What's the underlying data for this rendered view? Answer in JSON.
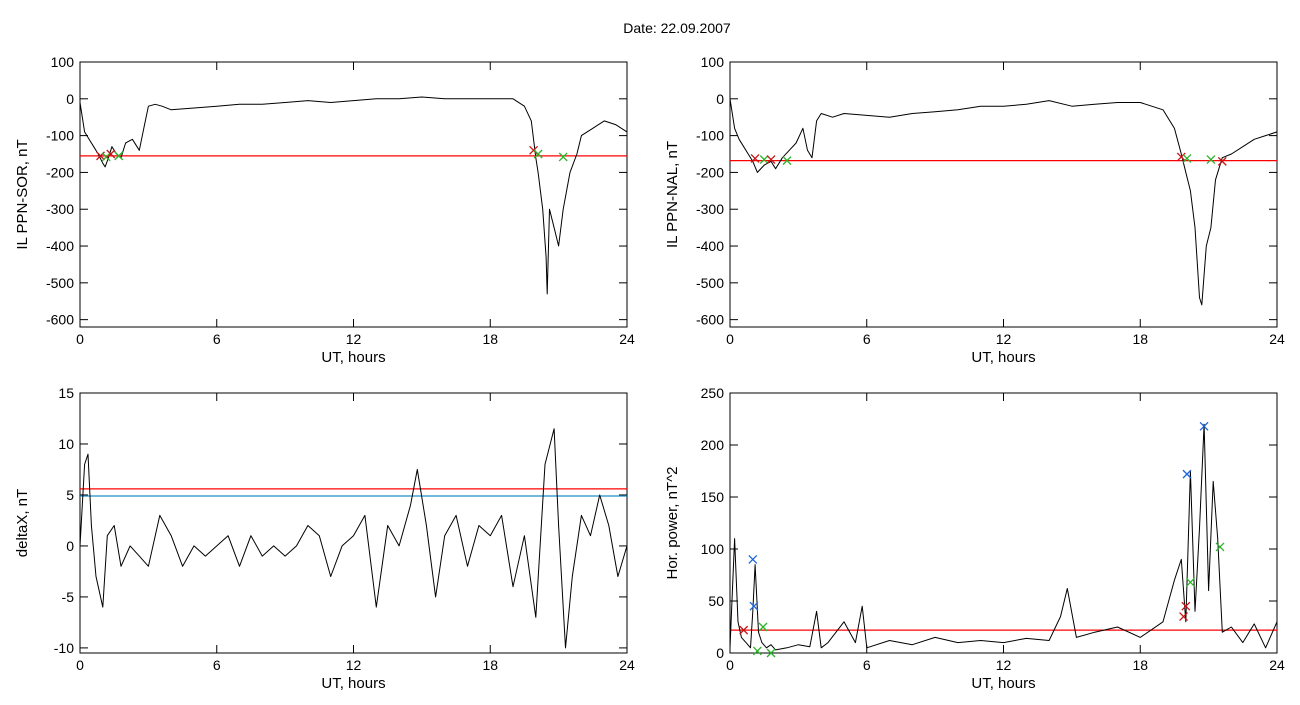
{
  "figure": {
    "title": "Date:  22.09.2007",
    "colors": {
      "trace": "#000000",
      "threshold": "#ff0000",
      "secondary_threshold": "#1e90c8",
      "marker_blue": "#1e64dc",
      "marker_green": "#28b428",
      "marker_red": "#c81414",
      "segment": "#1e64dc"
    }
  },
  "chart_data": [
    {
      "id": "il-ppn-sor",
      "type": "line",
      "xlabel": "UT, hours",
      "ylabel": "IL PPN-SOR, nT",
      "xlim": [
        0,
        24
      ],
      "ylim": [
        -620,
        100
      ],
      "xticks": [
        0,
        6,
        12,
        18,
        24
      ],
      "yticks": [
        100,
        0,
        -100,
        -200,
        -300,
        -400,
        -500,
        -600
      ],
      "grid": false,
      "series": [
        {
          "values_x": [
            0,
            0.2,
            0.4,
            0.6,
            0.8,
            1.0,
            1.1,
            1.25,
            1.4,
            1.6,
            1.8,
            2.0,
            2.3,
            2.6,
            2.8,
            3.0,
            3.3,
            3.6,
            4,
            5,
            6,
            7,
            8,
            9,
            10,
            11,
            12,
            13,
            14,
            15,
            16,
            17,
            18,
            19,
            19.5,
            19.8,
            20.0,
            20.1,
            20.2,
            20.3,
            20.45,
            20.5,
            20.6,
            20.8,
            21.0,
            21.2,
            21.5,
            21.8,
            22,
            22.5,
            23,
            23.5,
            24
          ],
          "values_y": [
            -10,
            -90,
            -110,
            -130,
            -150,
            -175,
            -185,
            -160,
            -130,
            -150,
            -160,
            -120,
            -110,
            -140,
            -80,
            -20,
            -15,
            -20,
            -30,
            -25,
            -20,
            -15,
            -15,
            -10,
            -5,
            -10,
            -5,
            0,
            0,
            5,
            0,
            0,
            0,
            0,
            -20,
            -60,
            -160,
            -200,
            -250,
            -300,
            -430,
            -530,
            -300,
            -350,
            -400,
            -300,
            -200,
            -150,
            -100,
            -80,
            -60,
            -70,
            -90
          ]
        }
      ],
      "thresholds": [
        {
          "y": -155,
          "color": "#ff0000"
        }
      ],
      "markers": [
        {
          "x": 0.9,
          "y": -155,
          "color": "#c81414"
        },
        {
          "x": 1.15,
          "y": -158,
          "color": "#28b428"
        },
        {
          "x": 1.35,
          "y": -150,
          "color": "#c81414"
        },
        {
          "x": 1.7,
          "y": -155,
          "color": "#28b428"
        },
        {
          "x": 19.9,
          "y": -140,
          "color": "#c81414"
        },
        {
          "x": 20.1,
          "y": -150,
          "color": "#28b428"
        },
        {
          "x": 21.2,
          "y": -158,
          "color": "#28b428"
        }
      ]
    },
    {
      "id": "il-ppn-nal",
      "type": "line",
      "xlabel": "UT, hours",
      "ylabel": "IL PPN-NAL, nT",
      "xlim": [
        0,
        24
      ],
      "ylim": [
        -620,
        100
      ],
      "xticks": [
        0,
        6,
        12,
        18,
        24
      ],
      "yticks": [
        100,
        0,
        -100,
        -200,
        -300,
        -400,
        -500,
        -600
      ],
      "grid": false,
      "series": [
        {
          "values_x": [
            0,
            0.2,
            0.4,
            0.6,
            0.8,
            1.0,
            1.2,
            1.5,
            1.8,
            2.0,
            2.3,
            2.6,
            2.9,
            3.2,
            3.4,
            3.6,
            3.8,
            4.0,
            4.5,
            5,
            6,
            7,
            8,
            9,
            10,
            11,
            12,
            13,
            14,
            15,
            16,
            17,
            18,
            19,
            19.5,
            19.8,
            20.0,
            20.2,
            20.4,
            20.6,
            20.7,
            20.9,
            21.1,
            21.3,
            21.6,
            22,
            22.5,
            23,
            23.5,
            24
          ],
          "values_y": [
            0,
            -80,
            -110,
            -130,
            -150,
            -170,
            -200,
            -180,
            -170,
            -190,
            -160,
            -140,
            -120,
            -80,
            -140,
            -160,
            -60,
            -40,
            -50,
            -40,
            -45,
            -50,
            -40,
            -35,
            -30,
            -20,
            -20,
            -15,
            -5,
            -20,
            -15,
            -10,
            -10,
            -30,
            -80,
            -150,
            -200,
            -250,
            -350,
            -540,
            -560,
            -400,
            -350,
            -220,
            -160,
            -150,
            -130,
            -110,
            -100,
            -90
          ]
        }
      ],
      "thresholds": [
        {
          "y": -168,
          "color": "#ff0000"
        }
      ],
      "markers": [
        {
          "x": 1.1,
          "y": -162,
          "color": "#c81414"
        },
        {
          "x": 1.5,
          "y": -165,
          "color": "#28b428"
        },
        {
          "x": 1.8,
          "y": -165,
          "color": "#c81414"
        },
        {
          "x": 2.5,
          "y": -168,
          "color": "#28b428"
        },
        {
          "x": 19.8,
          "y": -158,
          "color": "#c81414"
        },
        {
          "x": 20.05,
          "y": -162,
          "color": "#28b428"
        },
        {
          "x": 21.1,
          "y": -165,
          "color": "#28b428"
        },
        {
          "x": 21.6,
          "y": -170,
          "color": "#c81414"
        }
      ]
    },
    {
      "id": "deltax",
      "type": "line",
      "xlabel": "UT, hours",
      "ylabel": "deltaX, nT",
      "xlim": [
        0,
        24
      ],
      "ylim": [
        -10.5,
        15
      ],
      "xticks": [
        0,
        6,
        12,
        18,
        24
      ],
      "yticks": [
        15,
        10,
        5,
        0,
        -5,
        -10
      ],
      "grid": false,
      "series": [
        {
          "values_x": [
            0,
            0.2,
            0.35,
            0.5,
            0.7,
            1.0,
            1.2,
            1.5,
            1.8,
            2.2,
            2.6,
            3.0,
            3.5,
            4.0,
            4.5,
            5,
            5.5,
            6,
            6.5,
            7,
            7.5,
            8,
            8.5,
            9,
            9.5,
            10,
            10.5,
            11,
            11.5,
            12,
            12.5,
            13,
            13.5,
            14,
            14.5,
            14.8,
            15.2,
            15.6,
            16,
            16.5,
            17,
            17.5,
            18,
            18.5,
            19,
            19.5,
            20,
            20.4,
            20.8,
            21.0,
            21.3,
            21.6,
            22,
            22.4,
            22.8,
            23.2,
            23.6,
            24
          ],
          "values_y": [
            0,
            8,
            9,
            2,
            -3,
            -6,
            1,
            2,
            -2,
            0,
            -1,
            -2,
            3,
            1,
            -2,
            0,
            -1,
            0,
            1,
            -2,
            1,
            -1,
            0,
            -1,
            0,
            2,
            1,
            -3,
            0,
            1,
            3,
            -6,
            2,
            0,
            4,
            7.5,
            2,
            -5,
            1,
            3,
            -2,
            2,
            1,
            3,
            -4,
            1,
            -7,
            8,
            11.5,
            2,
            -10,
            -3,
            3,
            1,
            5,
            2,
            -3,
            0
          ]
        }
      ],
      "thresholds": [
        {
          "y": 5.6,
          "color": "#ff0000"
        },
        {
          "y": 4.9,
          "color": "#1e90c8"
        }
      ],
      "markers": []
    },
    {
      "id": "hor-power",
      "type": "line",
      "xlabel": "UT, hours",
      "ylabel": "Hor. power, nT^2",
      "xlim": [
        0,
        24
      ],
      "ylim": [
        0,
        250
      ],
      "xticks": [
        0,
        6,
        12,
        18,
        24
      ],
      "yticks": [
        0,
        50,
        100,
        150,
        200,
        250
      ],
      "grid": false,
      "series": [
        {
          "values_x": [
            0,
            0.2,
            0.35,
            0.5,
            0.7,
            0.9,
            1.0,
            1.1,
            1.25,
            1.4,
            1.6,
            1.8,
            2.0,
            2.5,
            3.0,
            3.5,
            3.8,
            4.0,
            4.3,
            5,
            5.5,
            5.8,
            6,
            7,
            8,
            9,
            10,
            11,
            12,
            13,
            14,
            14.5,
            14.8,
            15.2,
            16,
            17,
            18,
            19,
            19.5,
            19.8,
            20.0,
            20.2,
            20.4,
            20.6,
            20.8,
            21.0,
            21.2,
            21.4,
            21.6,
            22,
            22.5,
            23,
            23.5,
            24
          ],
          "values_y": [
            5,
            110,
            30,
            15,
            10,
            5,
            40,
            85,
            20,
            10,
            5,
            8,
            3,
            5,
            8,
            6,
            40,
            5,
            10,
            30,
            10,
            45,
            5,
            12,
            8,
            15,
            10,
            12,
            10,
            14,
            12,
            35,
            62,
            15,
            20,
            25,
            15,
            30,
            70,
            90,
            30,
            175,
            40,
            120,
            220,
            60,
            165,
            110,
            20,
            25,
            10,
            28,
            5,
            30
          ]
        }
      ],
      "thresholds": [
        {
          "y": 22,
          "color": "#ff0000"
        }
      ],
      "markers": [
        {
          "x": 1.0,
          "y": 90,
          "color": "#1e64dc"
        },
        {
          "x": 1.05,
          "y": 45,
          "color": "#1e64dc"
        },
        {
          "x": 0.6,
          "y": 22,
          "color": "#c81414"
        },
        {
          "x": 1.45,
          "y": 25,
          "color": "#28b428"
        },
        {
          "x": 1.2,
          "y": 2,
          "color": "#28b428"
        },
        {
          "x": 1.8,
          "y": 0,
          "color": "#28b428"
        },
        {
          "x": 19.9,
          "y": 35,
          "color": "#c81414"
        },
        {
          "x": 20.0,
          "y": 45,
          "color": "#c81414"
        },
        {
          "x": 20.05,
          "y": 172,
          "color": "#1e64dc"
        },
        {
          "x": 20.2,
          "y": 68,
          "color": "#28b428"
        },
        {
          "x": 20.8,
          "y": 218,
          "color": "#1e64dc"
        },
        {
          "x": 21.5,
          "y": 102,
          "color": "#28b428"
        }
      ]
    }
  ]
}
